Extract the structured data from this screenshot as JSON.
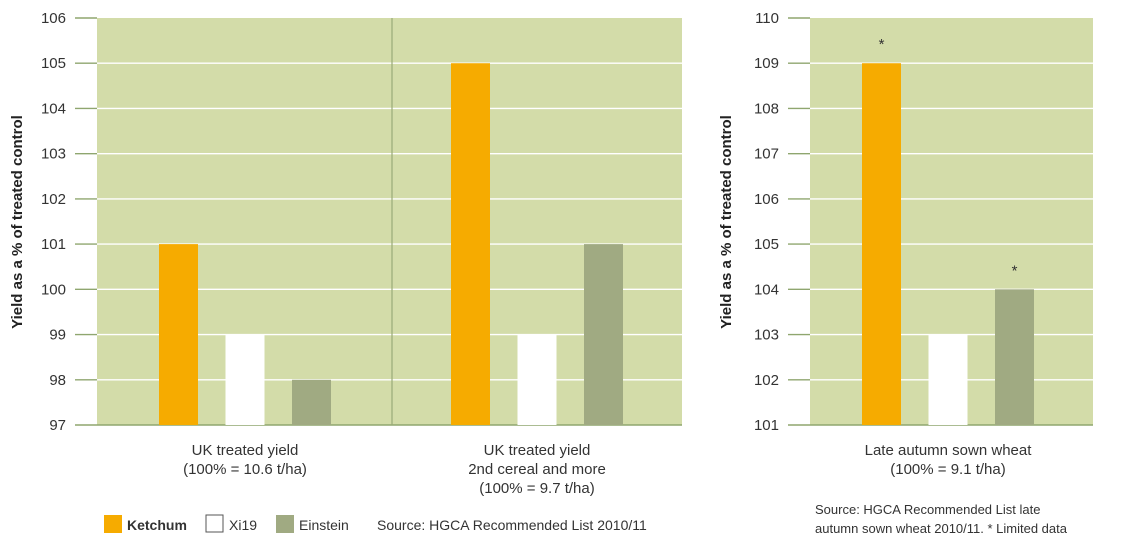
{
  "colors": {
    "plot_bg": "#d3dca9",
    "grid": "#ffffff",
    "axis": "#8fa66f",
    "divider": "#9aab78",
    "ketchum": "#f6ab00",
    "xi19": "#ffffff",
    "einstein": "#a0aa82"
  },
  "legend": {
    "items": [
      {
        "label": "Ketchum",
        "color": "#f6ab00",
        "bold": true
      },
      {
        "label": "Xi19",
        "color": "#ffffff",
        "bold": false
      },
      {
        "label": "Einstein",
        "color": "#a0aa82",
        "bold": false
      }
    ],
    "source": "Source: HGCA Recommended List 2010/11"
  },
  "chart_data": [
    {
      "type": "bar",
      "ylabel": "Yield as a % of treated control",
      "ylim": [
        97,
        106
      ],
      "yticks": [
        "97",
        "98",
        "99",
        "100",
        "101",
        "102",
        "103",
        "104",
        "105",
        "106"
      ],
      "grid": true,
      "categories": [
        [
          "UK treated yield",
          "(100% = 10.6 t/ha)"
        ],
        [
          "UK treated yield",
          "2nd cereal and more",
          "(100% = 9.7 t/ha)"
        ]
      ],
      "series": [
        {
          "name": "Ketchum",
          "values": [
            101,
            105
          ]
        },
        {
          "name": "Xi19",
          "values": [
            99,
            99
          ]
        },
        {
          "name": "Einstein",
          "values": [
            98,
            101
          ]
        }
      ],
      "annotations": []
    },
    {
      "type": "bar",
      "ylabel": "Yield as a % of treated control",
      "ylim": [
        101,
        110
      ],
      "yticks": [
        "101",
        "102",
        "103",
        "104",
        "105",
        "106",
        "107",
        "108",
        "109",
        "110"
      ],
      "grid": true,
      "categories": [
        [
          "Late autumn sown wheat",
          "(100% = 9.1 t/ha)"
        ]
      ],
      "series": [
        {
          "name": "Ketchum",
          "values": [
            109
          ]
        },
        {
          "name": "Xi19",
          "values": [
            103
          ]
        },
        {
          "name": "Einstein",
          "values": [
            104
          ]
        }
      ],
      "annotations": [
        "*",
        "",
        "*"
      ],
      "source": [
        "Source: HGCA Recommended List late",
        "autumn sown wheat 2010/11. * Limited data"
      ]
    }
  ]
}
